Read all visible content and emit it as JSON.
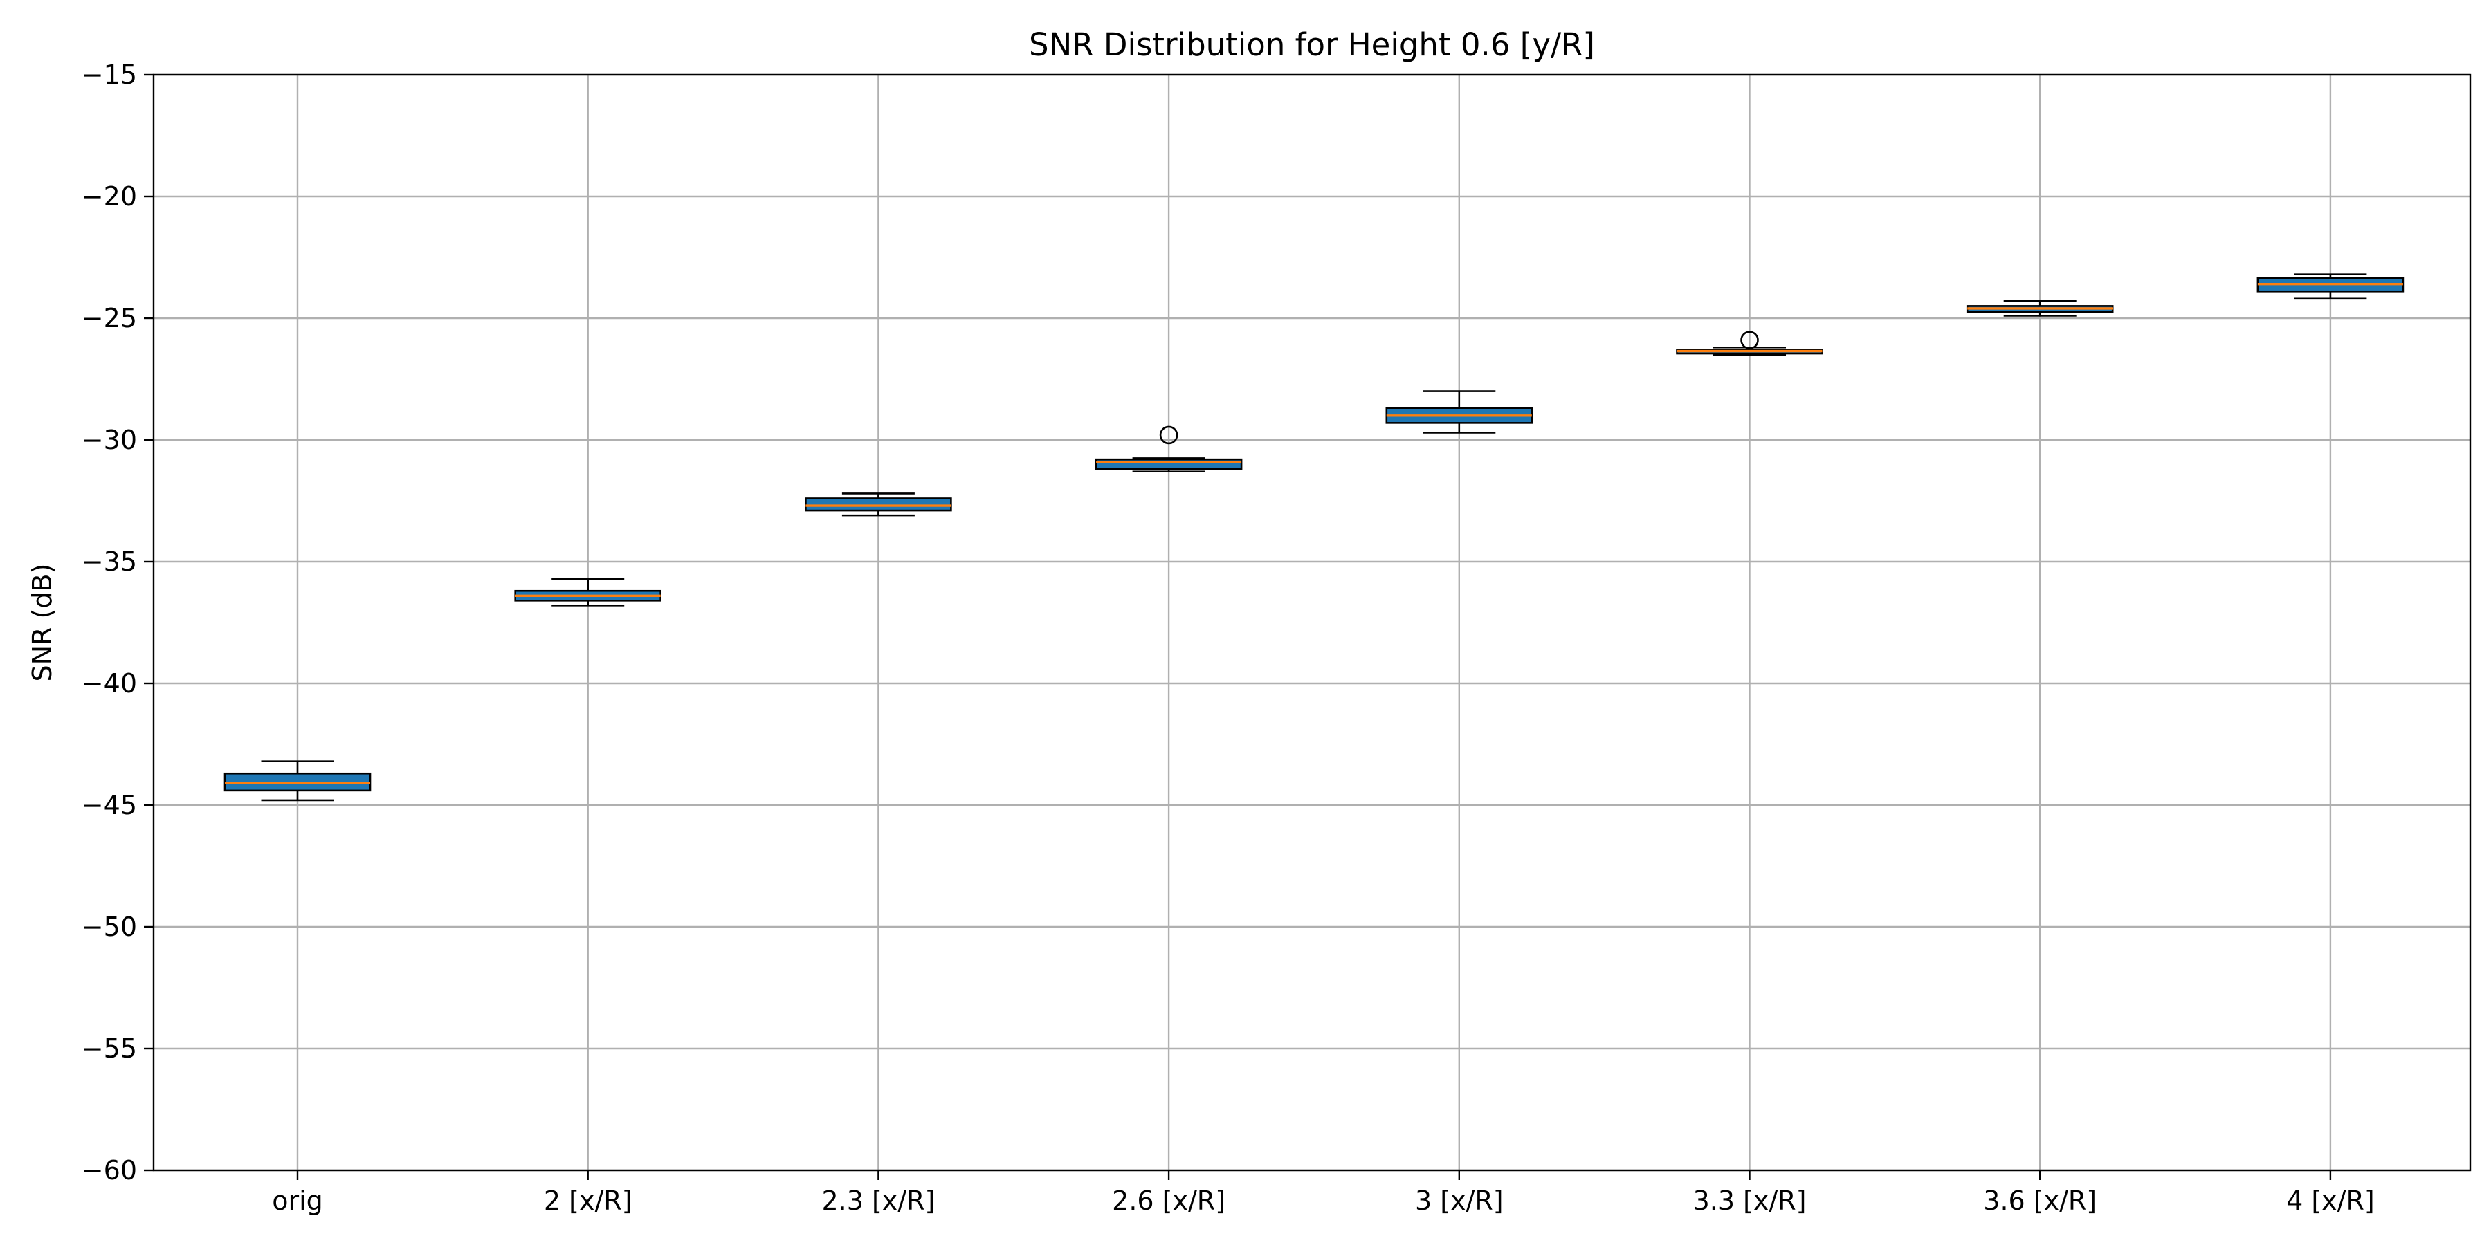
{
  "chart_data": {
    "type": "box",
    "title": "SNR Distribution for Height 0.6 [y/R]",
    "xlabel": "",
    "ylabel": "SNR (dB)",
    "ylim": [
      -60,
      -15
    ],
    "yticks": [
      -15,
      -20,
      -25,
      -30,
      -35,
      -40,
      -45,
      -50,
      -55,
      -60
    ],
    "ytick_labels": [
      "−15",
      "−20",
      "−25",
      "−30",
      "−35",
      "−40",
      "−45",
      "−50",
      "−55",
      "−60"
    ],
    "categories": [
      "orig",
      "2 [x/R]",
      "2.3 [x/R]",
      "2.6 [x/R]",
      "3 [x/R]",
      "3.3 [x/R]",
      "3.6 [x/R]",
      "4 [x/R]"
    ],
    "boxes": [
      {
        "whislo": -44.8,
        "q1": -44.4,
        "med": -44.1,
        "q3": -43.7,
        "whishi": -43.2,
        "fliers": []
      },
      {
        "whislo": -36.8,
        "q1": -36.6,
        "med": -36.4,
        "q3": -36.2,
        "whishi": -35.7,
        "fliers": []
      },
      {
        "whislo": -33.1,
        "q1": -32.9,
        "med": -32.7,
        "q3": -32.4,
        "whishi": -32.2,
        "fliers": []
      },
      {
        "whislo": -31.3,
        "q1": -31.2,
        "med": -30.9,
        "q3": -30.8,
        "whishi": -30.75,
        "fliers": [
          -29.8
        ]
      },
      {
        "whislo": -29.7,
        "q1": -29.3,
        "med": -29.0,
        "q3": -28.7,
        "whishi": -28.0,
        "fliers": []
      },
      {
        "whislo": -26.5,
        "q1": -26.45,
        "med": -26.35,
        "q3": -26.3,
        "whishi": -26.2,
        "fliers": [
          -25.9
        ]
      },
      {
        "whislo": -24.9,
        "q1": -24.75,
        "med": -24.6,
        "q3": -24.5,
        "whishi": -24.3,
        "fliers": []
      },
      {
        "whislo": -24.2,
        "q1": -23.9,
        "med": -23.6,
        "q3": -23.35,
        "whishi": -23.2,
        "fliers": []
      }
    ],
    "grid": true,
    "colors": {
      "box_fill": "#1f77b4",
      "median": "#ff7f0e",
      "grid": "#b0b0b0",
      "axis": "#000000"
    }
  }
}
